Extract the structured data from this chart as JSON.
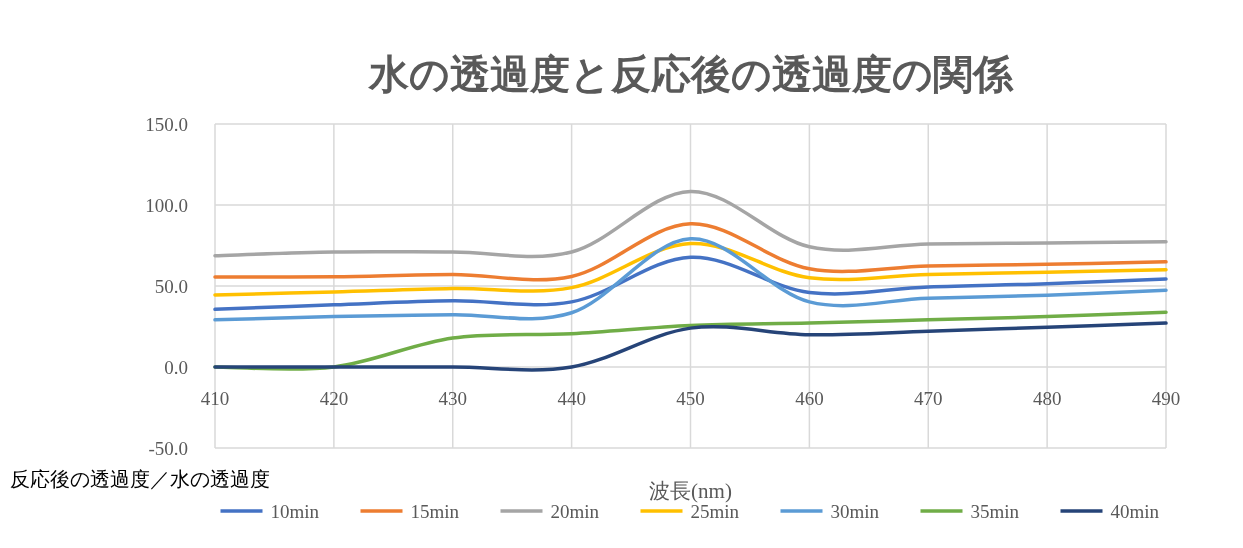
{
  "chart_data": {
    "type": "line",
    "title": "水の透過度と反応後の透過度の関係",
    "xlabel": "波長(nm)",
    "ylabel": "反応後の透過度／水の透過度",
    "x": [
      410,
      420,
      430,
      440,
      450,
      460,
      470,
      480,
      490
    ],
    "xlim": [
      410,
      490
    ],
    "xticks": [
      410,
      420,
      430,
      440,
      450,
      460,
      470,
      480,
      490
    ],
    "ylim": [
      -50,
      150
    ],
    "yticks": [
      {
        "value": -50,
        "label": "-50.0"
      },
      {
        "value": 0,
        "label": "0.0"
      },
      {
        "value": 50,
        "label": "50.0"
      },
      {
        "value": 100,
        "label": "100.0"
      },
      {
        "value": 150,
        "label": "150.0"
      }
    ],
    "grid": true,
    "legend": "bottom",
    "marker": "none",
    "line_style": "solid",
    "series": [
      {
        "name": "10min",
        "color": "#4472c4",
        "values": [
          35.6,
          38.4,
          40.9,
          40.2,
          67.7,
          46,
          49.4,
          51.4,
          54.3
        ]
      },
      {
        "name": "15min",
        "color": "#ed7d31",
        "values": [
          55.5,
          55.7,
          57.1,
          55.9,
          88.4,
          60.6,
          62.4,
          63.4,
          64.9
        ]
      },
      {
        "name": "20min",
        "color": "#a5a5a5",
        "values": [
          68.7,
          71,
          71,
          71,
          108.4,
          74.2,
          75.9,
          76.6,
          77.3
        ]
      },
      {
        "name": "25min",
        "color": "#ffc000",
        "values": [
          44.5,
          46.3,
          48.4,
          49,
          76.2,
          55.1,
          57.1,
          58.5,
          60
        ]
      },
      {
        "name": "30min",
        "color": "#5b9bd5",
        "values": [
          29.1,
          31.1,
          32.3,
          33.5,
          79.1,
          40.2,
          42.5,
          44.3,
          47.4
        ]
      },
      {
        "name": "35min",
        "color": "#70ad47",
        "values": [
          0,
          0,
          17.9,
          20.5,
          25.6,
          27.1,
          29.1,
          31.1,
          33.8
        ]
      },
      {
        "name": "40min",
        "color": "#264478",
        "values": [
          0,
          0,
          0,
          0,
          24,
          19.9,
          22,
          24.6,
          27.1
        ]
      }
    ]
  }
}
